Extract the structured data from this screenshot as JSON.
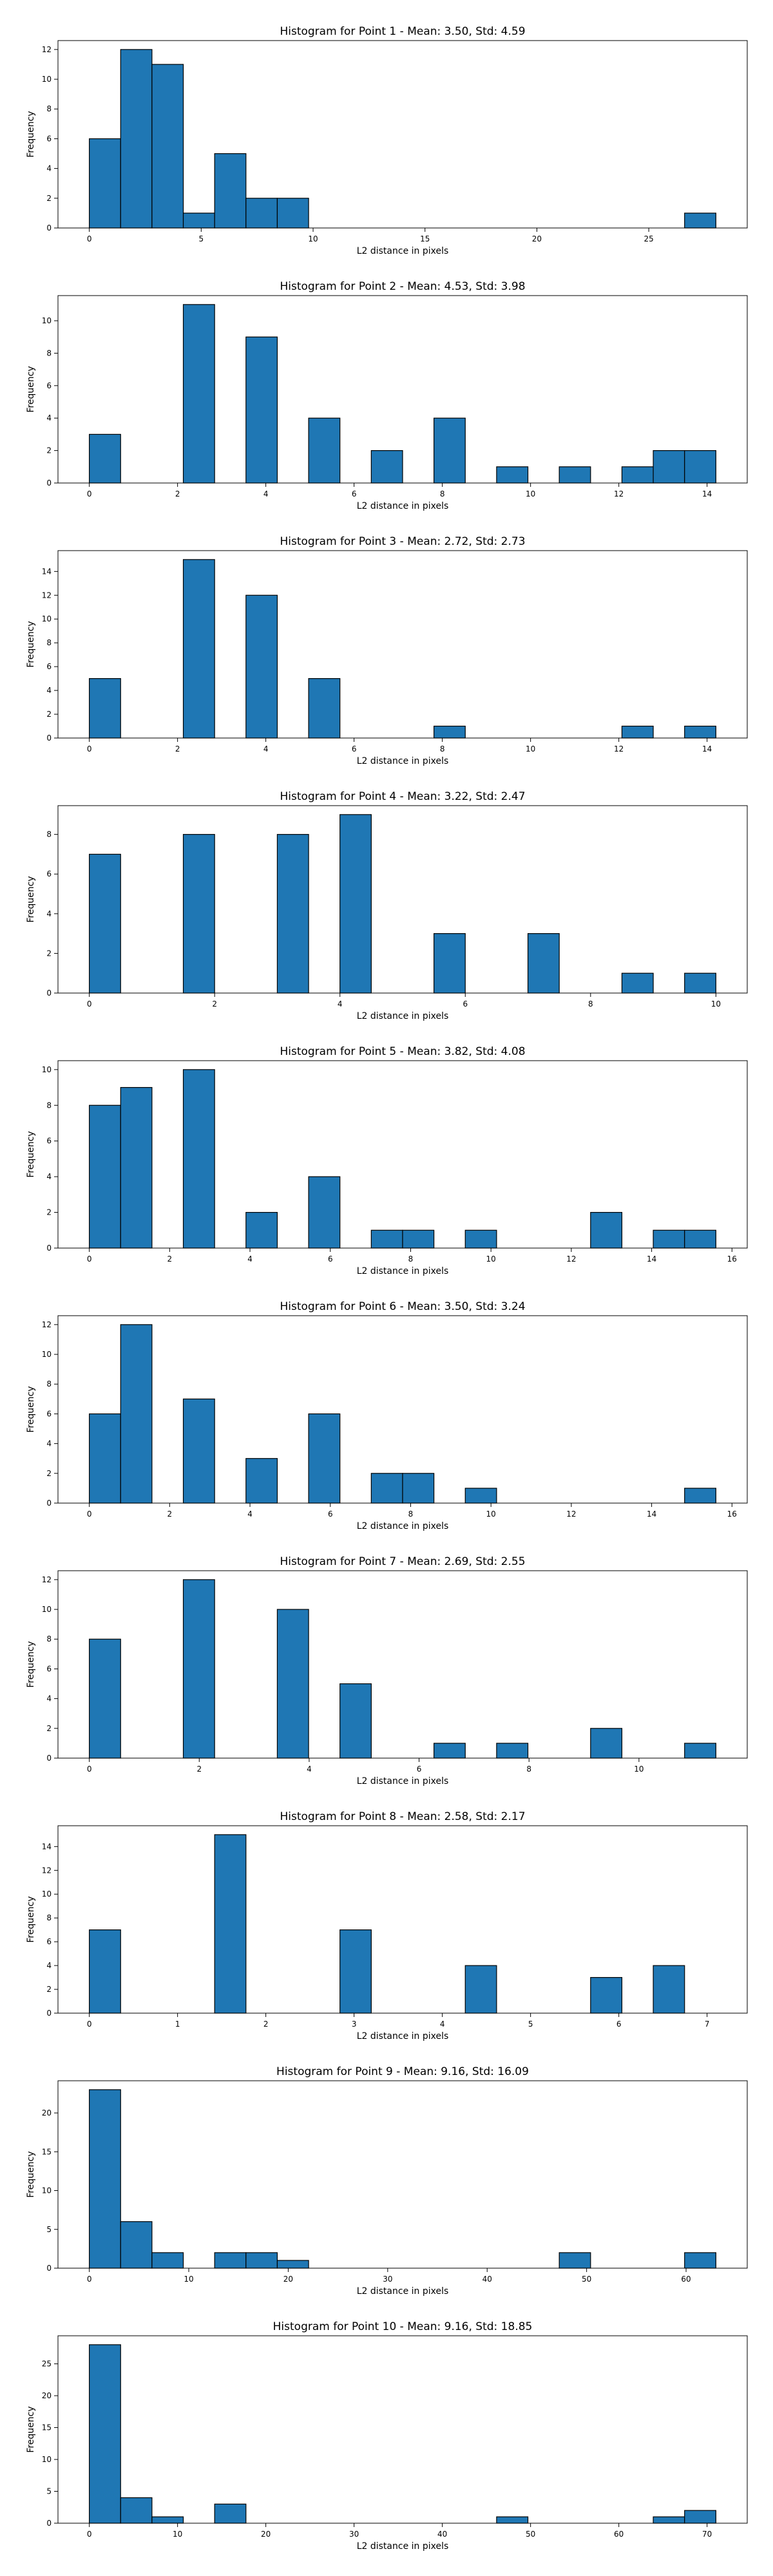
{
  "chart_data": [
    {
      "type": "bar",
      "title": "Histogram for Point 1 - Mean: 3.50, Std: 4.59",
      "xlabel": "L2 distance in pixels",
      "ylabel": "Frequency",
      "bin_range": [
        0,
        28
      ],
      "bins": 20,
      "values": [
        6,
        12,
        11,
        1,
        5,
        2,
        2,
        0,
        0,
        0,
        0,
        0,
        0,
        0,
        0,
        0,
        0,
        0,
        0,
        1
      ],
      "xlim": [
        -1.4,
        29.4
      ],
      "ylim": [
        0,
        12.6
      ],
      "xticks": [
        0,
        5,
        10,
        15,
        20,
        25
      ],
      "yticks": [
        0,
        2,
        4,
        6,
        8,
        10,
        12
      ],
      "bar_color": "#1f77b4",
      "edge_color": "#000000"
    },
    {
      "type": "bar",
      "title": "Histogram for Point 2 - Mean: 4.53, Std: 3.98",
      "xlabel": "L2 distance in pixels",
      "ylabel": "Frequency",
      "bin_range": [
        0,
        14.2
      ],
      "bins": 20,
      "values": [
        3,
        0,
        0,
        11,
        0,
        9,
        0,
        4,
        0,
        2,
        0,
        4,
        0,
        1,
        0,
        1,
        0,
        1,
        2,
        2
      ],
      "xlim": [
        -0.71,
        14.91
      ],
      "ylim": [
        0,
        11.55
      ],
      "xticks": [
        0,
        2,
        4,
        6,
        8,
        10,
        12,
        14
      ],
      "yticks": [
        0,
        2,
        4,
        6,
        8,
        10
      ],
      "bar_color": "#1f77b4",
      "edge_color": "#000000"
    },
    {
      "type": "bar",
      "title": "Histogram for Point 3 - Mean: 2.72, Std: 2.73",
      "xlabel": "L2 distance in pixels",
      "ylabel": "Frequency",
      "bin_range": [
        0,
        14.2
      ],
      "bins": 20,
      "values": [
        5,
        0,
        0,
        15,
        0,
        12,
        0,
        5,
        0,
        0,
        0,
        1,
        0,
        0,
        0,
        0,
        0,
        1,
        0,
        1
      ],
      "xlim": [
        -0.71,
        14.91
      ],
      "ylim": [
        0,
        15.75
      ],
      "xticks": [
        0,
        2,
        4,
        6,
        8,
        10,
        12,
        14
      ],
      "yticks": [
        0,
        2,
        4,
        6,
        8,
        10,
        12,
        14
      ],
      "bar_color": "#1f77b4",
      "edge_color": "#000000"
    },
    {
      "type": "bar",
      "title": "Histogram for Point 4 - Mean: 3.22, Std: 2.47",
      "xlabel": "L2 distance in pixels",
      "ylabel": "Frequency",
      "bin_range": [
        0,
        10
      ],
      "bins": 20,
      "values": [
        7,
        0,
        0,
        8,
        0,
        0,
        8,
        0,
        9,
        0,
        0,
        3,
        0,
        0,
        3,
        0,
        0,
        1,
        0,
        1
      ],
      "xlim": [
        -0.5,
        10.5
      ],
      "ylim": [
        0,
        9.45
      ],
      "xticks": [
        0,
        2,
        4,
        6,
        8,
        10
      ],
      "yticks": [
        0,
        2,
        4,
        6,
        8
      ],
      "bar_color": "#1f77b4",
      "edge_color": "#000000"
    },
    {
      "type": "bar",
      "title": "Histogram for Point 5 - Mean: 3.82, Std: 4.08",
      "xlabel": "L2 distance in pixels",
      "ylabel": "Frequency",
      "bin_range": [
        0,
        15.6
      ],
      "bins": 20,
      "values": [
        8,
        9,
        0,
        10,
        0,
        2,
        0,
        4,
        0,
        1,
        1,
        0,
        1,
        0,
        0,
        0,
        2,
        0,
        1,
        1
      ],
      "xlim": [
        -0.78,
        16.38
      ],
      "ylim": [
        0,
        10.5
      ],
      "xticks": [
        0,
        2,
        4,
        6,
        8,
        10,
        12,
        14,
        16
      ],
      "yticks": [
        0,
        2,
        4,
        6,
        8,
        10
      ],
      "bar_color": "#1f77b4",
      "edge_color": "#000000"
    },
    {
      "type": "bar",
      "title": "Histogram for Point 6 - Mean: 3.50, Std: 3.24",
      "xlabel": "L2 distance in pixels",
      "ylabel": "Frequency",
      "bin_range": [
        0,
        15.6
      ],
      "bins": 20,
      "values": [
        6,
        12,
        0,
        7,
        0,
        3,
        0,
        6,
        0,
        2,
        2,
        0,
        1,
        0,
        0,
        0,
        0,
        0,
        0,
        1
      ],
      "xlim": [
        -0.78,
        16.38
      ],
      "ylim": [
        0,
        12.6
      ],
      "xticks": [
        0,
        2,
        4,
        6,
        8,
        10,
        12,
        14,
        16
      ],
      "yticks": [
        0,
        2,
        4,
        6,
        8,
        10,
        12
      ],
      "bar_color": "#1f77b4",
      "edge_color": "#000000"
    },
    {
      "type": "bar",
      "title": "Histogram for Point 7 - Mean: 2.69, Std: 2.55",
      "xlabel": "L2 distance in pixels",
      "ylabel": "Frequency",
      "bin_range": [
        0,
        11.4
      ],
      "bins": 20,
      "values": [
        8,
        0,
        0,
        12,
        0,
        0,
        10,
        0,
        5,
        0,
        0,
        1,
        0,
        1,
        0,
        0,
        2,
        0,
        0,
        1
      ],
      "xlim": [
        -0.57,
        11.97
      ],
      "ylim": [
        0,
        12.6
      ],
      "xticks": [
        0,
        2,
        4,
        6,
        8,
        10
      ],
      "yticks": [
        0,
        2,
        4,
        6,
        8,
        10,
        12
      ],
      "bar_color": "#1f77b4",
      "edge_color": "#000000"
    },
    {
      "type": "bar",
      "title": "Histogram for Point 8 - Mean: 2.58, Std: 2.17",
      "xlabel": "L2 distance in pixels",
      "ylabel": "Frequency",
      "bin_range": [
        0,
        7.1
      ],
      "bins": 20,
      "values": [
        7,
        0,
        0,
        0,
        15,
        0,
        0,
        0,
        7,
        0,
        0,
        0,
        4,
        0,
        0,
        0,
        3,
        0,
        4,
        0
      ],
      "xlim": [
        -0.355,
        7.455
      ],
      "ylim": [
        0,
        15.75
      ],
      "xticks": [
        0,
        1,
        2,
        3,
        4,
        5,
        6,
        7
      ],
      "yticks": [
        0,
        2,
        4,
        6,
        8,
        10,
        12,
        14
      ],
      "bar_color": "#1f77b4",
      "edge_color": "#000000"
    },
    {
      "type": "bar",
      "title": "Histogram for Point 9 - Mean: 9.16, Std: 16.09",
      "xlabel": "L2 distance in pixels",
      "ylabel": "Frequency",
      "bin_range": [
        0,
        63
      ],
      "bins": 20,
      "values": [
        23,
        6,
        2,
        0,
        2,
        2,
        1,
        0,
        0,
        0,
        0,
        0,
        0,
        0,
        0,
        2,
        0,
        0,
        0,
        2
      ],
      "xlim": [
        -3.15,
        66.15
      ],
      "ylim": [
        0,
        24.15
      ],
      "xticks": [
        0,
        10,
        20,
        30,
        40,
        50,
        60
      ],
      "yticks": [
        0,
        5,
        10,
        15,
        20
      ],
      "bar_color": "#1f77b4",
      "edge_color": "#000000"
    },
    {
      "type": "bar",
      "title": "Histogram for Point 10 - Mean: 9.16, Std: 18.85",
      "xlabel": "L2 distance in pixels",
      "ylabel": "Frequency",
      "bin_range": [
        0,
        71
      ],
      "bins": 20,
      "values": [
        28,
        4,
        1,
        0,
        3,
        0,
        0,
        0,
        0,
        0,
        0,
        0,
        0,
        1,
        0,
        0,
        0,
        0,
        1,
        2
      ],
      "xlim": [
        -3.55,
        74.55
      ],
      "ylim": [
        0,
        29.4
      ],
      "xticks": [
        0,
        10,
        20,
        30,
        40,
        50,
        60,
        70
      ],
      "yticks": [
        0,
        5,
        10,
        15,
        20,
        25
      ],
      "bar_color": "#1f77b4",
      "edge_color": "#000000"
    }
  ]
}
